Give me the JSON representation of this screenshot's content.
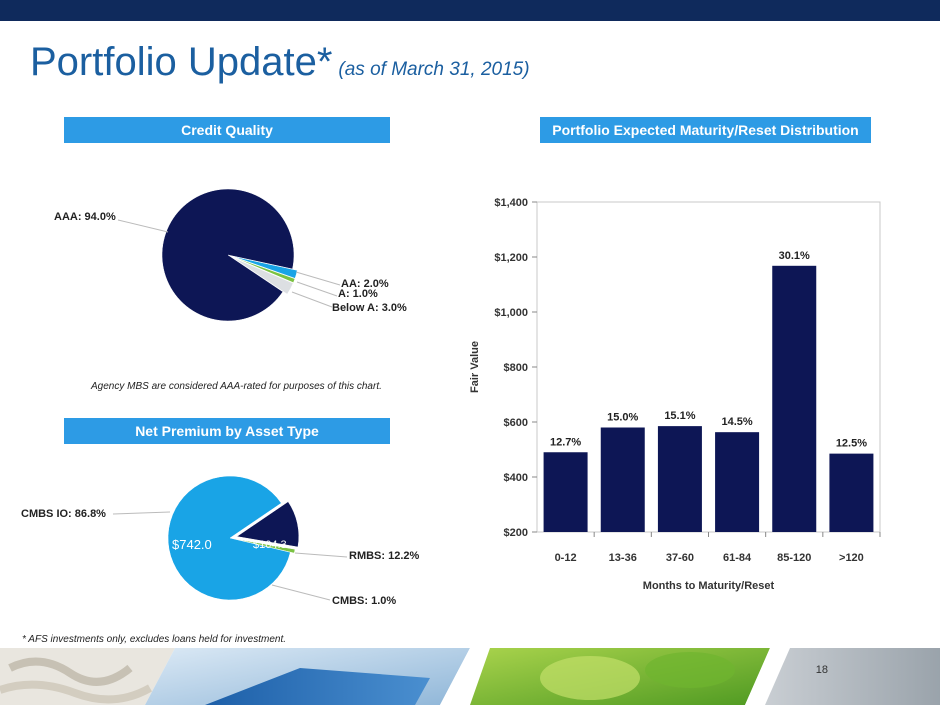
{
  "header": {
    "title": "Portfolio Update*",
    "subtitle": "(as of March 31, 2015)"
  },
  "credit_quality": {
    "heading": "Credit Quality",
    "labels": {
      "aaa": "AAA: 94.0%",
      "aa": "AA: 2.0%",
      "a": "A: 1.0%",
      "below_a": "Below A: 3.0%"
    },
    "note": "Agency MBS are considered AAA-rated for purposes of this chart."
  },
  "net_premium": {
    "heading": "Net Premium by Asset Type",
    "labels": {
      "cmbs_io": "CMBS IO: 86.8%",
      "rmbs": "RMBS: 12.2%",
      "cmbs": "CMBS: 1.0%"
    },
    "values": {
      "cmbs_io": "$742.0",
      "rmbs": "$104.3"
    }
  },
  "maturity": {
    "heading": "Portfolio Expected Maturity/Reset Distribution"
  },
  "footnote": "* AFS investments only, excludes loans held for investment.",
  "page_number": "18",
  "colors": {
    "navy": "#0d1655",
    "light_blue": "#19a4e6",
    "header_blue": "#2d9be5",
    "title_blue": "#1b5fa0",
    "grey": "#dcdfe2",
    "green": "#7cc242"
  },
  "chart_data": [
    {
      "type": "pie",
      "title": "Credit Quality",
      "categories": [
        "AAA",
        "AA",
        "A",
        "Below A"
      ],
      "values": [
        94.0,
        2.0,
        1.0,
        3.0
      ]
    },
    {
      "type": "pie",
      "title": "Net Premium by Asset Type",
      "categories": [
        "CMBS IO",
        "RMBS",
        "CMBS"
      ],
      "values": [
        86.8,
        12.2,
        1.0
      ],
      "amounts": [
        742.0,
        104.3,
        null
      ]
    },
    {
      "type": "bar",
      "title": "Portfolio Expected Maturity/Reset Distribution",
      "categories": [
        "0-12",
        "13-36",
        "37-60",
        "61-84",
        "85-120",
        ">120"
      ],
      "values": [
        490,
        580,
        585,
        563,
        1168,
        485
      ],
      "data_labels": [
        "12.7%",
        "15.0%",
        "15.1%",
        "14.5%",
        "30.1%",
        "12.5%"
      ],
      "xlabel": "Months to Maturity/Reset",
      "ylabel": "Fair Value",
      "ylim": [
        200,
        1400
      ],
      "yticks": [
        200,
        400,
        600,
        800,
        1000,
        1200,
        1400
      ],
      "ytick_labels": [
        "$200",
        "$400",
        "$600",
        "$800",
        "$1,000",
        "$1,200",
        "$1,400"
      ]
    }
  ]
}
